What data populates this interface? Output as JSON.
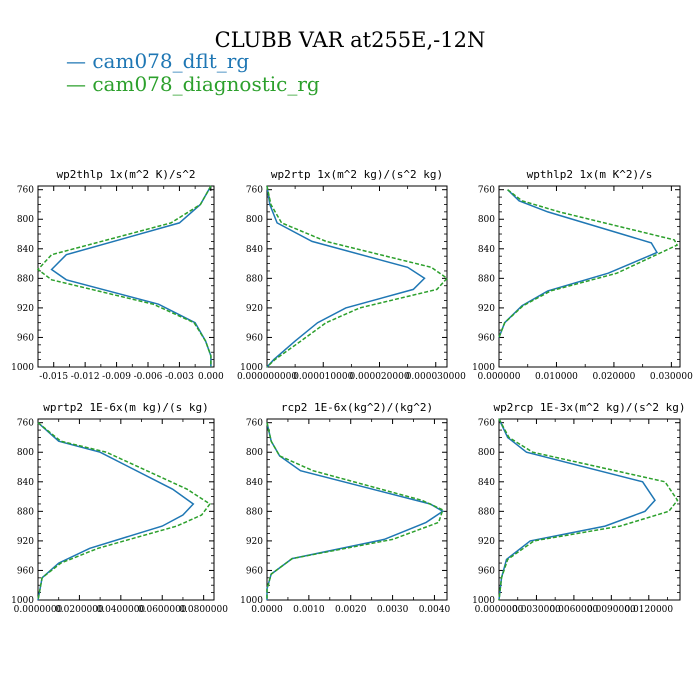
{
  "title": "CLUBB VAR at255E,-12N",
  "legend": [
    {
      "label": "cam078_dflt_rg",
      "color": "#1f77b4",
      "dash": false
    },
    {
      "label": "cam078_diagnostic_rg",
      "color": "#2ca02c",
      "dash": true
    }
  ],
  "chart_data": [
    {
      "type": "line",
      "title": "wp2thlp  1x(m^2 K)/s^2",
      "ylim": [
        1000,
        755
      ],
      "yticks": [
        "760",
        "800",
        "840",
        "880",
        "920",
        "960",
        "1000"
      ],
      "xlim": [
        -0.0165,
        0.0003
      ],
      "xticks": [
        -0.015,
        -0.012,
        -0.009,
        -0.006,
        -0.003,
        0.0
      ],
      "xticklabels": [
        "-0.015",
        "-0.012",
        "-0.009",
        "-0.006",
        "-0.003",
        "0.000"
      ],
      "series": [
        {
          "name": "cam078_dflt_rg",
          "x": [
            0.0,
            -0.001,
            -0.003,
            -0.0138,
            -0.0152,
            -0.0138,
            -0.005,
            -0.0015,
            -0.0005,
            0.0,
            0.0
          ],
          "y": [
            755,
            780,
            805,
            848,
            868,
            882,
            915,
            940,
            965,
            985,
            1000
          ]
        },
        {
          "name": "cam078_diagnostic_rg",
          "x": [
            0.0,
            -0.001,
            -0.0038,
            -0.0152,
            -0.0165,
            -0.0152,
            -0.0055,
            -0.0016,
            -0.0005,
            0.0,
            0.0
          ],
          "y": [
            755,
            780,
            805,
            848,
            868,
            882,
            915,
            940,
            965,
            985,
            1000
          ]
        }
      ]
    },
    {
      "type": "line",
      "title": "wp2rtp  1x(m^2 kg)/(s^2 kg)",
      "ylim": [
        1000,
        755
      ],
      "yticks": [
        "760",
        "800",
        "840",
        "880",
        "920",
        "960",
        "1000"
      ],
      "xlim": [
        0.0,
        3.2e-05
      ],
      "xticks": [
        0.0,
        1e-05,
        2e-05,
        3e-05
      ],
      "xticklabels": [
        "0.000000000",
        "0.000010000",
        "0.000020000",
        "0.000030000"
      ],
      "series": [
        {
          "name": "cam078_dflt_rg",
          "x": [
            0.0,
            5e-07,
            1.8e-06,
            8e-06,
            2.5e-05,
            2.8e-05,
            2.6e-05,
            1.4e-05,
            9e-06,
            5e-06,
            1.2e-06,
            0.0
          ],
          "y": [
            755,
            780,
            805,
            830,
            865,
            880,
            895,
            920,
            940,
            965,
            990,
            1000
          ]
        },
        {
          "name": "cam078_diagnostic_rg",
          "x": [
            0.0,
            7e-07,
            2.6e-06,
            1.05e-05,
            2.92e-05,
            3.2e-05,
            3.02e-05,
            1.65e-05,
            1.05e-05,
            6e-06,
            1.4e-06,
            0.0
          ],
          "y": [
            755,
            780,
            805,
            830,
            865,
            880,
            895,
            920,
            940,
            965,
            990,
            1000
          ]
        }
      ]
    },
    {
      "type": "line",
      "title": "wpthlp2  1x(m K^2)/s",
      "ylim": [
        1000,
        755
      ],
      "yticks": [
        "760",
        "800",
        "840",
        "880",
        "920",
        "960",
        "1000"
      ],
      "xlim": [
        0.0,
        0.0315
      ],
      "xticks": [
        0.0,
        0.01,
        0.02,
        0.03
      ],
      "xticklabels": [
        "0.000000",
        "0.010000",
        "0.020000",
        "0.030000"
      ],
      "series": [
        {
          "name": "cam078_dflt_rg",
          "x": [
            0.0015,
            0.0035,
            0.0085,
            0.0265,
            0.0275,
            0.019,
            0.0085,
            0.004,
            0.001,
            0.0
          ],
          "y": [
            760,
            775,
            790,
            832,
            845,
            873,
            897,
            917,
            940,
            960
          ]
        },
        {
          "name": "cam078_diagnostic_rg",
          "x": [
            0.0015,
            0.004,
            0.0105,
            0.0305,
            0.031,
            0.0205,
            0.009,
            0.0042,
            0.001,
            0.0
          ],
          "y": [
            760,
            775,
            790,
            828,
            835,
            873,
            897,
            917,
            940,
            960
          ]
        }
      ]
    },
    {
      "type": "line",
      "title": "wprtp2  1E-6x(m kg)/(s kg)",
      "ylim": [
        1000,
        755
      ],
      "yticks": [
        "760",
        "800",
        "840",
        "880",
        "920",
        "960",
        "1000"
      ],
      "xlim": [
        0.0,
        0.085
      ],
      "xticks": [
        0.0,
        0.02,
        0.04,
        0.06,
        0.08
      ],
      "xticklabels": [
        "0.0000000",
        "0.0200000",
        "0.0400000",
        "0.0600000",
        "0.0800000"
      ],
      "series": [
        {
          "name": "cam078_dflt_rg",
          "x": [
            0.0,
            0.01,
            0.03,
            0.065,
            0.075,
            0.07,
            0.06,
            0.025,
            0.01,
            0.002,
            0.0
          ],
          "y": [
            760,
            785,
            800,
            850,
            870,
            885,
            900,
            930,
            950,
            970,
            1000
          ]
        },
        {
          "name": "cam078_diagnostic_rg",
          "x": [
            0.0,
            0.011,
            0.033,
            0.072,
            0.083,
            0.079,
            0.067,
            0.029,
            0.011,
            0.002,
            0.0
          ],
          "y": [
            760,
            785,
            800,
            850,
            870,
            885,
            900,
            930,
            950,
            970,
            1000
          ]
        }
      ]
    },
    {
      "type": "line",
      "title": "rcp2  1E-6x(kg^2)/(kg^2)",
      "ylim": [
        1000,
        755
      ],
      "yticks": [
        "760",
        "800",
        "840",
        "880",
        "920",
        "960",
        "1000"
      ],
      "xlim": [
        0.0,
        0.0043
      ],
      "xticks": [
        0.0,
        0.001,
        0.002,
        0.003,
        0.004
      ],
      "xticklabels": [
        "0.0000",
        "0.0010",
        "0.0020",
        "0.0030",
        "0.0040"
      ],
      "series": [
        {
          "name": "cam078_dflt_rg",
          "x": [
            0.0,
            0.0001,
            0.0003,
            0.0008,
            0.0039,
            0.0042,
            0.0038,
            0.0028,
            0.0006,
            0.0001,
            0.0,
            0.0
          ],
          "y": [
            760,
            785,
            805,
            825,
            870,
            880,
            895,
            918,
            944,
            965,
            985,
            1000
          ]
        },
        {
          "name": "cam078_diagnostic_rg",
          "x": [
            0.0,
            0.0001,
            0.0003,
            0.0011,
            0.0037,
            0.0042,
            0.0041,
            0.003,
            0.0006,
            0.0001,
            0.0,
            0.0
          ],
          "y": [
            760,
            785,
            805,
            825,
            865,
            878,
            895,
            918,
            944,
            965,
            985,
            1000
          ]
        }
      ]
    },
    {
      "type": "line",
      "title": "wp2rcp  1E-3x(m^2 kg)/(s^2 kg)",
      "ylim": [
        1000,
        755
      ],
      "yticks": [
        "760",
        "800",
        "840",
        "880",
        "920",
        "960",
        "1000"
      ],
      "xlim": [
        0.0,
        0.0145
      ],
      "xticks": [
        0.0,
        0.003,
        0.006,
        0.009,
        0.012
      ],
      "xticklabels": [
        "0.0000000",
        "0.0030000",
        "0.0060000",
        "0.0090000",
        "0.0120000"
      ],
      "series": [
        {
          "name": "cam078_dflt_rg",
          "x": [
            0.0,
            0.0007,
            0.0022,
            0.0115,
            0.0125,
            0.0117,
            0.0085,
            0.0025,
            0.0006,
            0.0002,
            0.0
          ],
          "y": [
            755,
            780,
            800,
            840,
            865,
            880,
            900,
            920,
            945,
            970,
            1000
          ]
        },
        {
          "name": "cam078_diagnostic_rg",
          "x": [
            0.0,
            0.0008,
            0.0027,
            0.0133,
            0.0143,
            0.0136,
            0.0097,
            0.0028,
            0.0007,
            0.0002,
            0.0
          ],
          "y": [
            755,
            780,
            800,
            840,
            865,
            880,
            900,
            920,
            945,
            970,
            1000
          ]
        }
      ]
    }
  ]
}
